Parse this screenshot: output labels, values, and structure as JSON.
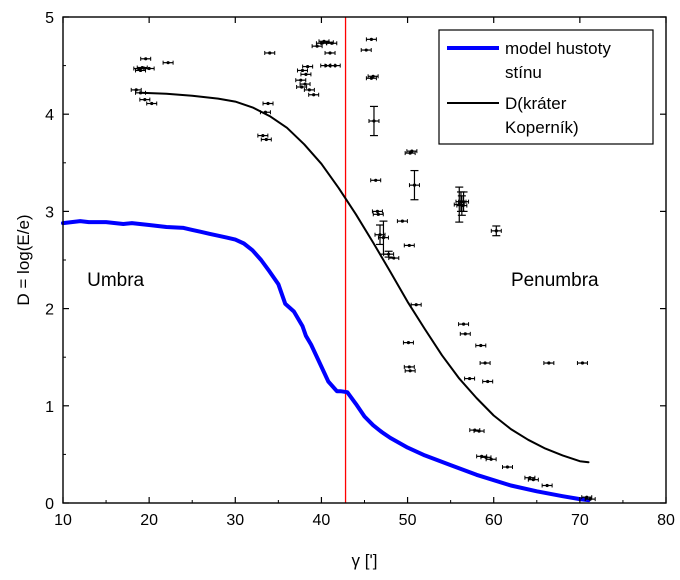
{
  "chart_data": {
    "type": "line",
    "xlabel": "γ [']",
    "ylabel": "D = log(E/e)",
    "xlim": [
      10,
      80
    ],
    "ylim": [
      0,
      5
    ],
    "x_ticks": [
      10,
      20,
      30,
      40,
      50,
      60,
      70,
      80
    ],
    "y_ticks": [
      0,
      1,
      2,
      3,
      4,
      5
    ],
    "grid": false,
    "legend_position": "top-right",
    "series": [
      {
        "name": "model hustoty stínu",
        "color": "#0000ff",
        "kind": "line",
        "x": [
          10,
          11,
          12,
          13,
          15,
          17,
          18,
          20,
          22,
          24,
          25,
          26,
          27,
          28,
          29,
          30,
          31,
          32,
          33,
          34,
          35,
          35.8,
          36.8,
          37.8,
          38.2,
          38.8,
          39.8,
          40.8,
          41.8,
          42.2,
          43,
          44,
          45,
          46,
          47,
          48,
          50,
          52,
          55,
          58,
          62,
          65,
          68,
          70,
          71
        ],
        "y": [
          2.88,
          2.89,
          2.9,
          2.89,
          2.89,
          2.87,
          2.88,
          2.86,
          2.84,
          2.83,
          2.81,
          2.79,
          2.77,
          2.75,
          2.73,
          2.71,
          2.67,
          2.6,
          2.5,
          2.38,
          2.25,
          2.05,
          1.97,
          1.82,
          1.72,
          1.63,
          1.44,
          1.25,
          1.15,
          1.15,
          1.14,
          1.02,
          0.89,
          0.8,
          0.73,
          0.67,
          0.57,
          0.49,
          0.39,
          0.29,
          0.18,
          0.12,
          0.07,
          0.04,
          0.03
        ]
      },
      {
        "name": "D(kráter Koperník)",
        "color": "#000000",
        "kind": "line",
        "x": [
          19,
          22,
          25,
          28,
          30,
          32,
          34,
          36,
          38,
          40,
          42,
          44,
          46,
          48,
          50,
          52,
          54,
          56,
          58,
          60,
          62,
          64,
          66,
          68,
          70,
          71
        ],
        "y": [
          4.22,
          4.21,
          4.19,
          4.16,
          4.13,
          4.07,
          3.98,
          3.86,
          3.69,
          3.49,
          3.24,
          2.97,
          2.68,
          2.38,
          2.07,
          1.79,
          1.52,
          1.28,
          1.08,
          0.9,
          0.76,
          0.65,
          0.56,
          0.49,
          0.43,
          0.42
        ]
      },
      {
        "kind": "errorbar-scatter",
        "color": "#000000",
        "x": [
          18.5,
          19,
          19.5,
          19,
          18.8,
          19.2,
          19.6,
          20,
          20.3,
          22.2,
          33.2,
          33.6,
          33.8,
          34,
          33.5,
          37.8,
          38.2,
          37.6,
          38.4,
          37.7,
          38.1,
          38.6,
          39.1,
          39.5,
          40,
          40.3,
          40.8,
          41.2,
          40.5,
          41,
          41.6,
          41,
          45.2,
          45.8,
          46,
          45.8,
          46.1,
          46.3,
          46.5,
          46.6,
          46.8,
          47.2,
          47.8,
          48.4,
          49.4,
          50.2,
          50.3,
          50.5,
          50.8,
          51,
          56,
          56.2,
          56.3,
          56.5,
          60.3,
          50.1,
          50.2,
          50.3,
          56.5,
          56.7,
          57.2,
          58.5,
          59,
          59.3,
          57.8,
          58.3,
          58.6,
          59.1,
          59.7,
          61.6,
          64.2,
          64.6,
          66.2,
          66.4,
          70.3,
          70.8,
          71.2
        ],
        "y": [
          4.25,
          4.22,
          4.15,
          4.45,
          4.47,
          4.48,
          4.57,
          4.47,
          4.11,
          4.53,
          3.78,
          3.74,
          4.11,
          4.63,
          4.02,
          4.45,
          4.41,
          4.35,
          4.49,
          4.28,
          4.31,
          4.25,
          4.2,
          4.7,
          4.73,
          4.75,
          4.74,
          4.73,
          4.5,
          4.5,
          4.5,
          4.63,
          4.66,
          4.77,
          4.39,
          4.37,
          3.93,
          3.32,
          3,
          2.97,
          2.76,
          2.73,
          2.56,
          2.52,
          2.9,
          2.65,
          3.6,
          3.62,
          3.27,
          2.04,
          3.07,
          3.1,
          3.06,
          3.1,
          2.8,
          1.65,
          1.4,
          1.36,
          1.84,
          1.74,
          1.28,
          1.62,
          1.44,
          1.25,
          0.75,
          0.74,
          0.48,
          0.47,
          0.45,
          0.37,
          0.26,
          0.24,
          0.18,
          1.44,
          1.44,
          0.06,
          0.04
        ],
        "yerr": [
          0,
          0,
          0,
          0,
          0,
          0,
          0,
          0,
          0,
          0,
          0,
          0,
          0,
          0,
          0,
          0,
          0,
          0,
          0,
          0,
          0,
          0,
          0,
          0,
          0,
          0,
          0,
          0,
          0,
          0,
          0,
          0,
          0,
          0,
          0,
          0,
          0.15,
          0,
          0,
          0,
          0.1,
          0.17,
          0.03,
          0,
          0,
          0,
          0,
          0,
          0.15,
          0,
          0.18,
          0.1,
          0.1,
          0.1,
          0.05,
          0,
          0,
          0,
          0,
          0,
          0,
          0,
          0,
          0,
          0,
          0,
          0,
          0,
          0,
          0,
          0,
          0,
          0,
          0,
          0,
          0,
          0
        ]
      }
    ],
    "vline": {
      "x": 42.8,
      "color": "#ff0000"
    },
    "annotations": [
      {
        "text": "Umbra",
        "x": 12.8,
        "y": 2.23
      },
      {
        "text": "Penumbra",
        "x": 62,
        "y": 2.23
      }
    ],
    "legend": [
      {
        "lines": [
          "model hustoty",
          "stínu"
        ],
        "color": "#0000ff",
        "stroke_width": 4
      },
      {
        "lines": [
          "D(kráter",
          "Koperník)"
        ],
        "color": "#000000",
        "stroke_width": 2
      }
    ]
  }
}
